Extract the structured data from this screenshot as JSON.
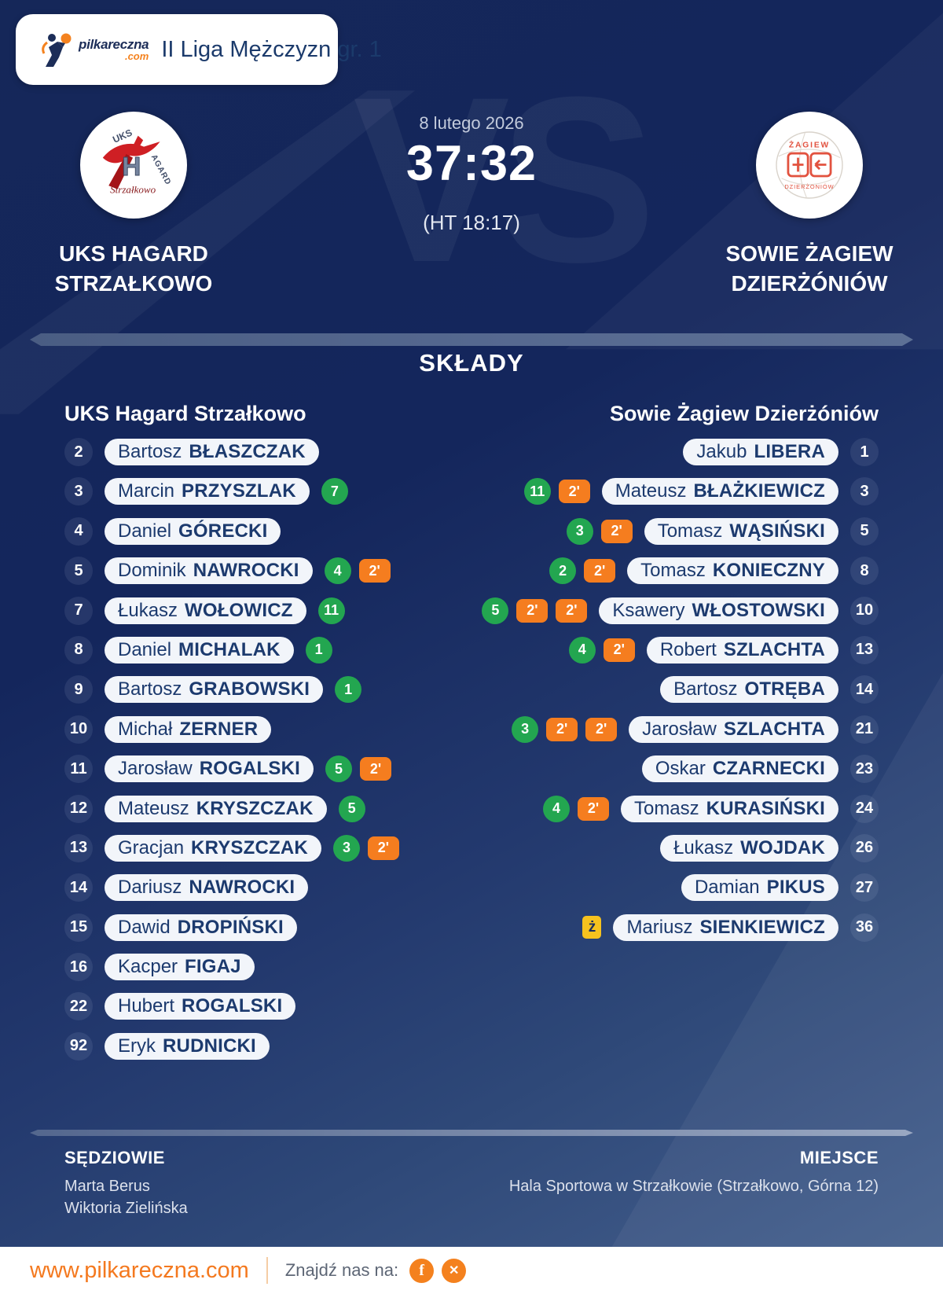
{
  "brand": {
    "name": "pilkareczna",
    "tld": ".com"
  },
  "header": {
    "league_title": "II Liga Mężczyzn gr. 1"
  },
  "match": {
    "date": "8 lutego 2026",
    "score": "37:32",
    "halftime": "(HT 18:17)",
    "vs_watermark": "VS",
    "home": {
      "name_line1": "UKS HAGARD",
      "name_line2": "STRZAŁKOWO",
      "logo_text_top": "UKS",
      "logo_text_center": "H",
      "logo_text_side": "AGARD",
      "logo_text_bottom": "Strzałkowo"
    },
    "away": {
      "name_line1": "SOWIE ŻAGIEW",
      "name_line2": "DZIERŻÓNIÓW",
      "logo_text_top": "ŻAGIEW",
      "logo_text_bottom": "DZIERŻONIÓW"
    }
  },
  "lineups": {
    "title": "SKŁADY",
    "home_header": "UKS Hagard Strzałkowo",
    "away_header": "Sowie Żagiew Dzierżóniów",
    "penalty_label": "2'",
    "yellow_card_label": "ż",
    "home_players": [
      {
        "number": 2,
        "first": "Bartosz",
        "last": "BŁASZCZAK",
        "goals": null,
        "penalties": 0,
        "yellow_card": false
      },
      {
        "number": 3,
        "first": "Marcin",
        "last": "PRZYSZLAK",
        "goals": 7,
        "penalties": 0,
        "yellow_card": false
      },
      {
        "number": 4,
        "first": "Daniel",
        "last": "GÓRECKI",
        "goals": null,
        "penalties": 0,
        "yellow_card": false
      },
      {
        "number": 5,
        "first": "Dominik",
        "last": "NAWROCKI",
        "goals": 4,
        "penalties": 1,
        "yellow_card": false
      },
      {
        "number": 7,
        "first": "Łukasz",
        "last": "WOŁOWICZ",
        "goals": 11,
        "penalties": 0,
        "yellow_card": false
      },
      {
        "number": 8,
        "first": "Daniel",
        "last": "MICHALAK",
        "goals": 1,
        "penalties": 0,
        "yellow_card": false
      },
      {
        "number": 9,
        "first": "Bartosz",
        "last": "GRABOWSKI",
        "goals": 1,
        "penalties": 0,
        "yellow_card": false
      },
      {
        "number": 10,
        "first": "Michał",
        "last": "ZERNER",
        "goals": null,
        "penalties": 0,
        "yellow_card": false
      },
      {
        "number": 11,
        "first": "Jarosław",
        "last": "ROGALSKI",
        "goals": 5,
        "penalties": 1,
        "yellow_card": false
      },
      {
        "number": 12,
        "first": "Mateusz",
        "last": "KRYSZCZAK",
        "goals": 5,
        "penalties": 0,
        "yellow_card": false
      },
      {
        "number": 13,
        "first": "Gracjan",
        "last": "KRYSZCZAK",
        "goals": 3,
        "penalties": 1,
        "yellow_card": false
      },
      {
        "number": 14,
        "first": "Dariusz",
        "last": "NAWROCKI",
        "goals": null,
        "penalties": 0,
        "yellow_card": false
      },
      {
        "number": 15,
        "first": "Dawid",
        "last": "DROPIŃSKI",
        "goals": null,
        "penalties": 0,
        "yellow_card": false
      },
      {
        "number": 16,
        "first": "Kacper",
        "last": "FIGAJ",
        "goals": null,
        "penalties": 0,
        "yellow_card": false
      },
      {
        "number": 22,
        "first": "Hubert",
        "last": "ROGALSKI",
        "goals": null,
        "penalties": 0,
        "yellow_card": false
      },
      {
        "number": 92,
        "first": "Eryk",
        "last": "RUDNICKI",
        "goals": null,
        "penalties": 0,
        "yellow_card": false
      }
    ],
    "away_players": [
      {
        "number": 1,
        "first": "Jakub",
        "last": "LIBERA",
        "goals": null,
        "penalties": 0,
        "yellow_card": false
      },
      {
        "number": 3,
        "first": "Mateusz",
        "last": "BŁAŻKIEWICZ",
        "goals": 11,
        "penalties": 1,
        "yellow_card": false
      },
      {
        "number": 5,
        "first": "Tomasz",
        "last": "WĄSIŃSKI",
        "goals": 3,
        "penalties": 1,
        "yellow_card": false
      },
      {
        "number": 8,
        "first": "Tomasz",
        "last": "KONIECZNY",
        "goals": 2,
        "penalties": 1,
        "yellow_card": false
      },
      {
        "number": 10,
        "first": "Ksawery",
        "last": "WŁOSTOWSKI",
        "goals": 5,
        "penalties": 2,
        "yellow_card": false
      },
      {
        "number": 13,
        "first": "Robert",
        "last": "SZLACHTA",
        "goals": 4,
        "penalties": 1,
        "yellow_card": false
      },
      {
        "number": 14,
        "first": "Bartosz",
        "last": "OTRĘBA",
        "goals": null,
        "penalties": 0,
        "yellow_card": false
      },
      {
        "number": 21,
        "first": "Jarosław",
        "last": "SZLACHTA",
        "goals": 3,
        "penalties": 2,
        "yellow_card": false
      },
      {
        "number": 23,
        "first": "Oskar",
        "last": "CZARNECKI",
        "goals": null,
        "penalties": 0,
        "yellow_card": false
      },
      {
        "number": 24,
        "first": "Tomasz",
        "last": "KURASIŃSKI",
        "goals": 4,
        "penalties": 1,
        "yellow_card": false
      },
      {
        "number": 26,
        "first": "Łukasz",
        "last": "WOJDAK",
        "goals": null,
        "penalties": 0,
        "yellow_card": false
      },
      {
        "number": 27,
        "first": "Damian",
        "last": "PIKUS",
        "goals": null,
        "penalties": 0,
        "yellow_card": false
      },
      {
        "number": 36,
        "first": "Mariusz",
        "last": "SIENKIEWICZ",
        "goals": null,
        "penalties": 0,
        "yellow_card": true
      }
    ]
  },
  "officials": {
    "referees_label": "SĘDZIOWIE",
    "referees": [
      "Marta Berus",
      "Wiktoria Zielińska"
    ],
    "venue_label": "MIEJSCE",
    "venue": "Hala Sportowa w Strzałkowie (Strzałkowo, Górna 12)"
  },
  "footer": {
    "website": "www.pilkareczna.com",
    "find_us_label": "Znajdź nas na:",
    "facebook_glyph": "f",
    "x_glyph": "✕"
  },
  "colors": {
    "background_top": "#14265c",
    "background_bottom": "#47628f",
    "accent_orange": "#f57d1f",
    "goals_green": "#23a650",
    "yellow_card": "#f6c21e",
    "pill_bg": "#f2f5fa",
    "text_navy": "#1c3a6e"
  }
}
